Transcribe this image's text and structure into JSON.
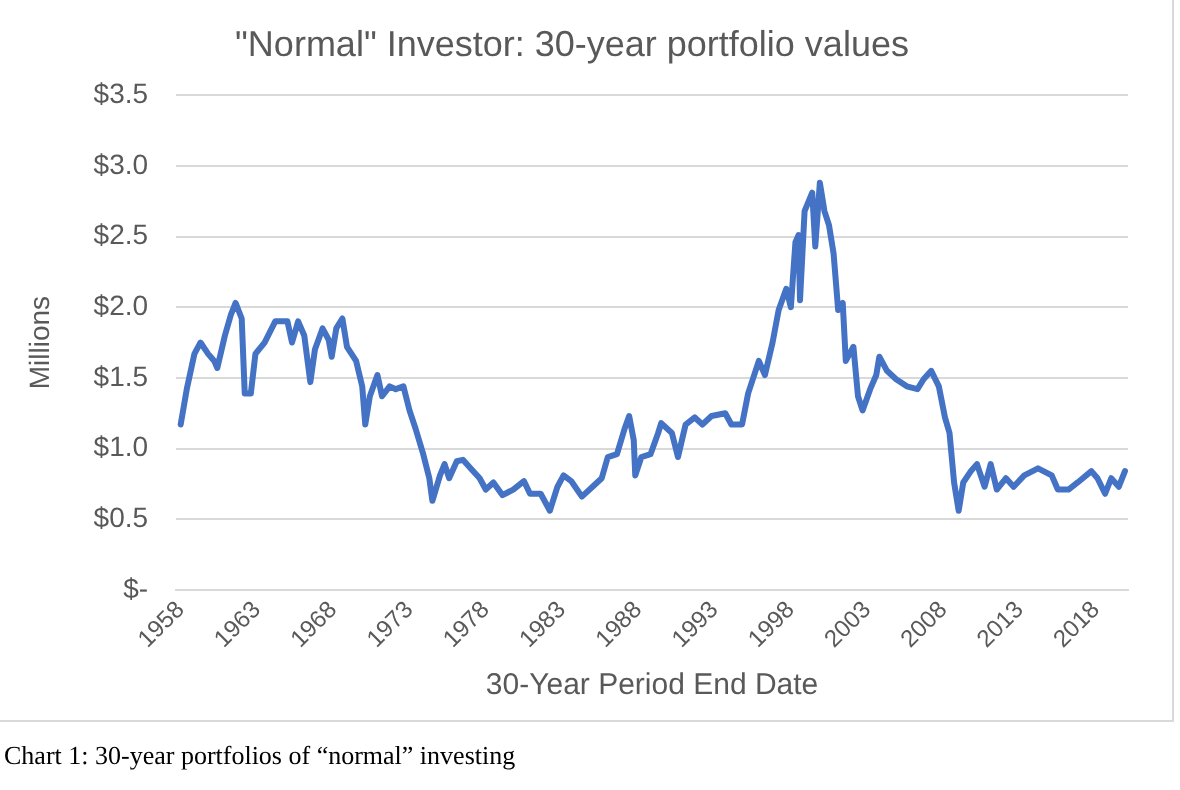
{
  "chart_data": {
    "type": "line",
    "title": "\"Normal\" Investor: 30-year portfolio values",
    "xlabel": "30-Year Period End Date",
    "ylabel": "Millions",
    "annotations": [
      "Chart 1: 30-year portfolios of “normal” investing"
    ],
    "xlim": [
      1957.7,
      2020.1
    ],
    "xticks": [
      1958,
      1963,
      1968,
      1973,
      1978,
      1983,
      1988,
      1993,
      1998,
      2003,
      2008,
      2013,
      2018
    ],
    "ylim": [
      0,
      3.5
    ],
    "yticks": [
      {
        "value": 0,
        "label": "$-"
      },
      {
        "value": 0.5,
        "label": "$0.5"
      },
      {
        "value": 1,
        "label": "$1.0"
      },
      {
        "value": 1.5,
        "label": "$1.5"
      },
      {
        "value": 2,
        "label": "$2.0"
      },
      {
        "value": 2.5,
        "label": "$2.5"
      },
      {
        "value": 3,
        "label": "$3.0"
      },
      {
        "value": 3.5,
        "label": "$3.5"
      }
    ],
    "grid": "y",
    "legend": false,
    "marker": "none",
    "line_style": "solid",
    "series": [
      {
        "color": "#4472c4",
        "x": [
          1958,
          1958.4,
          1958.9,
          1959.3,
          1959.8,
          1960.2,
          1960.4,
          1960.9,
          1961.3,
          1961.6,
          1962,
          1962.2,
          1962.6,
          1962.9,
          1963.5,
          1964.2,
          1965,
          1965.3,
          1965.7,
          1966.1,
          1966.5,
          1966.8,
          1967.3,
          1967.7,
          1967.9,
          1968.2,
          1968.6,
          1968.9,
          1969.5,
          1969.9,
          1970.1,
          1970.4,
          1970.9,
          1971.2,
          1971.7,
          1972.1,
          1972.6,
          1973,
          1973.4,
          1973.9,
          1974.3,
          1974.5,
          1975,
          1975.3,
          1975.6,
          1976.1,
          1976.5,
          1977,
          1977.6,
          1978,
          1978.5,
          1979.1,
          1979.8,
          1980.5,
          1980.9,
          1981.6,
          1982.2,
          1982.7,
          1983.1,
          1983.6,
          1984.3,
          1985,
          1985.6,
          1986,
          1986.6,
          1987.1,
          1987.4,
          1987.7,
          1987.8,
          1988.2,
          1988.8,
          1989.3,
          1989.5,
          1990.2,
          1990.6,
          1991.1,
          1991.7,
          1992.2,
          1992.8,
          1993.7,
          1994.1,
          1994.8,
          1995.2,
          1995.9,
          1996.3,
          1996.8,
          1997.2,
          1997.7,
          1998,
          1998.3,
          1998.5,
          1998.6,
          1998.9,
          1999.4,
          1999.6,
          1999.9,
          2000.2,
          2000.5,
          2000.8,
          2001.1,
          2001.4,
          2001.6,
          2002.1,
          2002.4,
          2002.7,
          2003.2,
          2003.6,
          2003.8,
          2004.3,
          2004.9,
          2005.6,
          2006.3,
          2006.7,
          2007.2,
          2007.7,
          2008.1,
          2008.4,
          2008.7,
          2009,
          2009.3,
          2009.8,
          2010.2,
          2010.7,
          2011.1,
          2011.5,
          2012.1,
          2012.6,
          2013.3,
          2014.2,
          2015.1,
          2015.5,
          2016.2,
          2016.8,
          2017.7,
          2018.1,
          2018.6,
          2019,
          2019.5,
          2019.9
        ],
        "values": [
          1.17,
          1.42,
          1.67,
          1.75,
          1.67,
          1.62,
          1.57,
          1.8,
          1.95,
          2.03,
          1.92,
          1.39,
          1.39,
          1.67,
          1.75,
          1.9,
          1.9,
          1.75,
          1.9,
          1.8,
          1.47,
          1.7,
          1.85,
          1.77,
          1.65,
          1.85,
          1.92,
          1.72,
          1.62,
          1.44,
          1.17,
          1.37,
          1.52,
          1.37,
          1.44,
          1.42,
          1.44,
          1.27,
          1.14,
          0.96,
          0.79,
          0.63,
          0.81,
          0.89,
          0.79,
          0.91,
          0.92,
          0.86,
          0.79,
          0.71,
          0.76,
          0.67,
          0.71,
          0.77,
          0.68,
          0.68,
          0.56,
          0.73,
          0.81,
          0.77,
          0.66,
          0.73,
          0.79,
          0.94,
          0.96,
          1.14,
          1.23,
          1.06,
          0.81,
          0.94,
          0.96,
          1.11,
          1.18,
          1.11,
          0.94,
          1.17,
          1.22,
          1.17,
          1.23,
          1.25,
          1.17,
          1.17,
          1.39,
          1.62,
          1.52,
          1.75,
          1.98,
          2.13,
          2,
          2.46,
          2.51,
          2.05,
          2.68,
          2.81,
          2.43,
          2.88,
          2.68,
          2.58,
          2.38,
          1.98,
          2.03,
          1.62,
          1.72,
          1.37,
          1.27,
          1.42,
          1.52,
          1.65,
          1.55,
          1.49,
          1.44,
          1.42,
          1.49,
          1.55,
          1.44,
          1.22,
          1.11,
          0.76,
          0.56,
          0.76,
          0.84,
          0.89,
          0.73,
          0.89,
          0.71,
          0.79,
          0.73,
          0.81,
          0.86,
          0.81,
          0.71,
          0.71,
          0.76,
          0.84,
          0.79,
          0.68,
          0.79,
          0.73,
          0.84
        ]
      }
    ]
  }
}
